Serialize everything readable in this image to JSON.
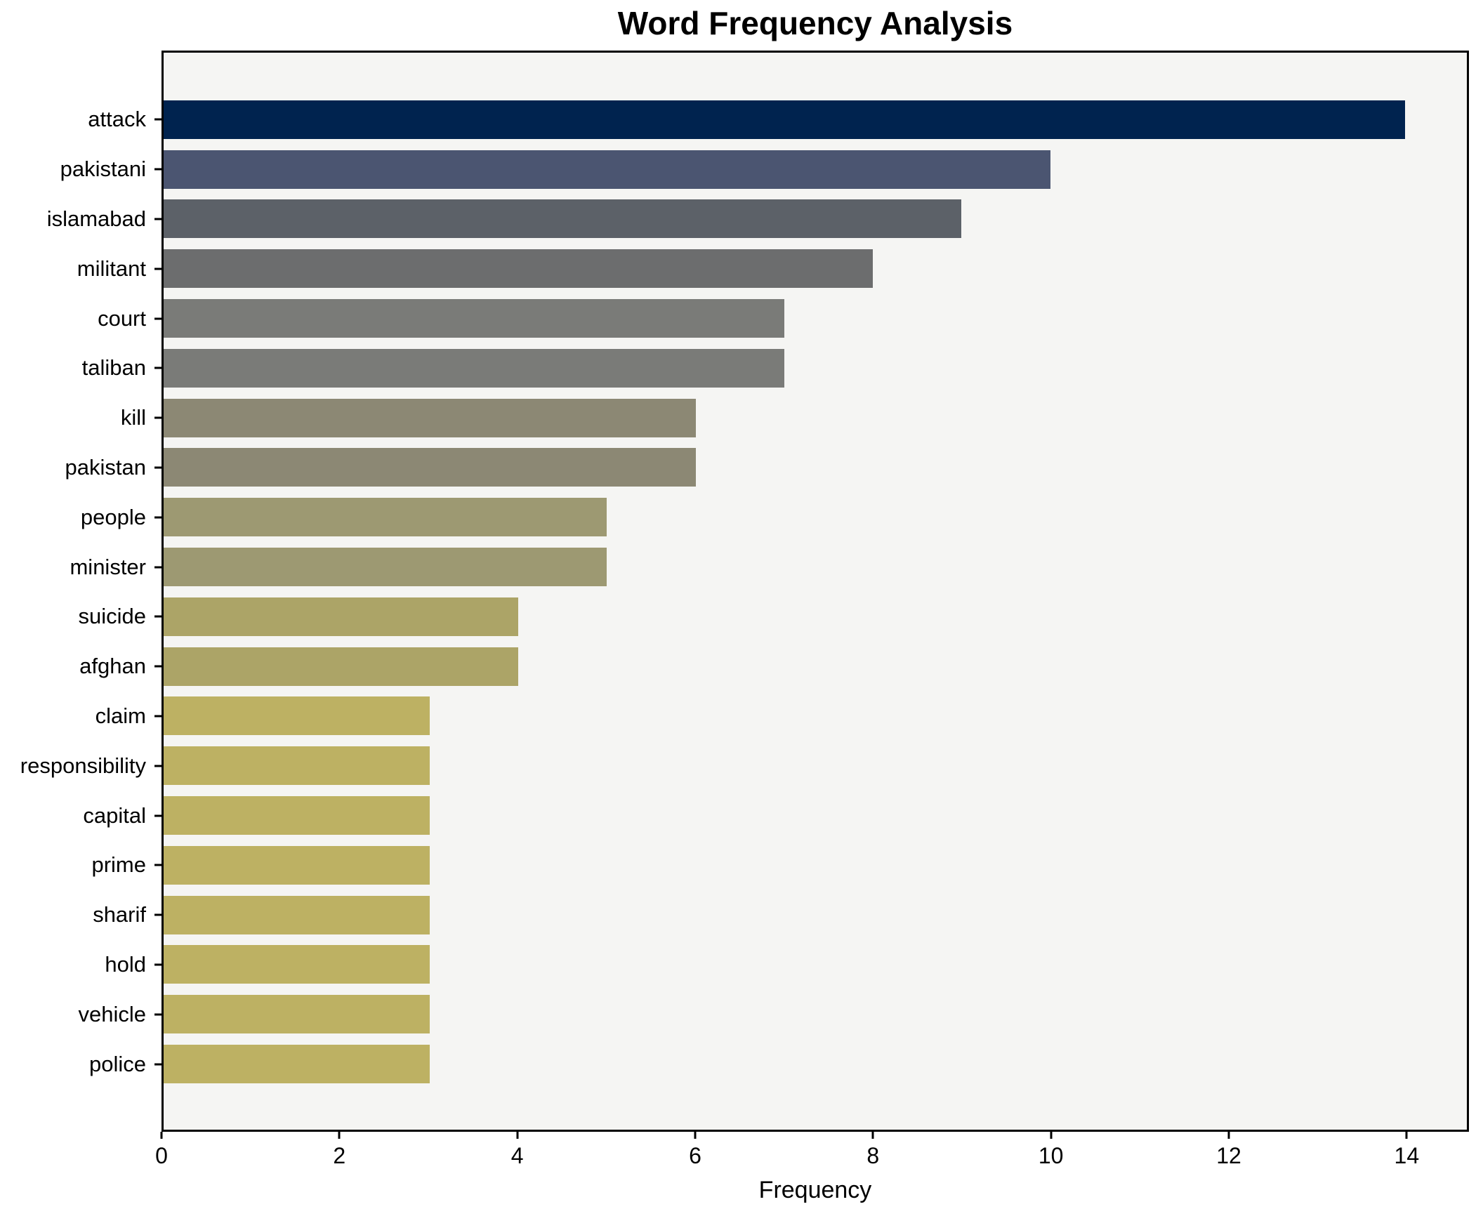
{
  "title": "Word Frequency Analysis",
  "x_axis_label": "Frequency",
  "chart_data": {
    "type": "bar",
    "orientation": "horizontal",
    "title": "Word Frequency Analysis",
    "xlabel": "Frequency",
    "ylabel": "",
    "grid": false,
    "legend": false,
    "plot_background": "#f5f5f3",
    "frame_color": "#000000",
    "xlim": [
      0,
      14.7
    ],
    "x_ticks": [
      0,
      2,
      4,
      6,
      8,
      10,
      12,
      14
    ],
    "categories": [
      "attack",
      "pakistani",
      "islamabad",
      "militant",
      "court",
      "taliban",
      "kill",
      "pakistan",
      "people",
      "minister",
      "suicide",
      "afghan",
      "claim",
      "responsibility",
      "capital",
      "prime",
      "sharif",
      "hold",
      "vehicle",
      "police"
    ],
    "values": [
      14,
      10,
      9,
      8,
      7,
      7,
      6,
      6,
      5,
      5,
      4,
      4,
      3,
      3,
      3,
      3,
      3,
      3,
      3,
      3
    ],
    "bar_colors": [
      "#00234f",
      "#4b5571",
      "#5c6168",
      "#6c6d6e",
      "#7a7b78",
      "#7a7b78",
      "#8c8874",
      "#8c8874",
      "#9d9972",
      "#9d9972",
      "#aca467",
      "#aca467",
      "#bdb163",
      "#bdb163",
      "#bdb163",
      "#bdb163",
      "#bdb163",
      "#bdb163",
      "#bdb163",
      "#bdb163"
    ]
  }
}
